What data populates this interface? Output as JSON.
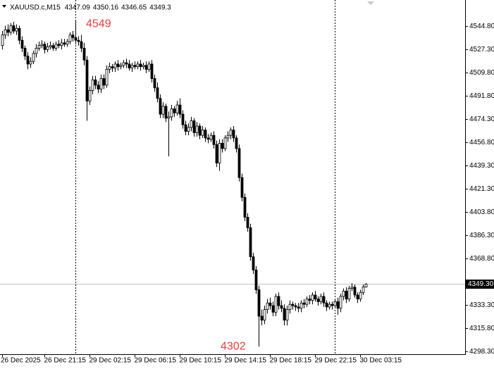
{
  "chart_data": {
    "type": "candlestick",
    "symbol": "XAUUSD.c,M15",
    "categories": [
      "26 Dec 2025",
      null,
      null,
      null,
      null,
      null,
      null,
      null,
      null,
      null,
      null,
      null,
      null,
      null,
      null,
      "26 Dec 21:15",
      null,
      null,
      null,
      null,
      null,
      null,
      null,
      null,
      null,
      null,
      null,
      null,
      null,
      null,
      null,
      "29 Dec 02:15",
      null,
      null,
      null,
      null,
      null,
      null,
      null,
      null,
      null,
      null,
      null,
      null,
      null,
      null,
      null,
      "29 Dec 06:15",
      null,
      null,
      null,
      null,
      null,
      null,
      null,
      null,
      null,
      null,
      null,
      null,
      null,
      null,
      null,
      "29 Dec 10:15",
      null,
      null,
      null,
      null,
      null,
      null,
      null,
      null,
      null,
      null,
      null,
      null,
      null,
      null,
      null,
      "29 Dec 14:15",
      null,
      null,
      null,
      null,
      null,
      null,
      null,
      null,
      null,
      null,
      null,
      null,
      null,
      null,
      null,
      "29 Dec 18:15",
      null,
      null,
      null,
      null,
      null,
      null,
      null,
      null,
      null,
      null,
      null,
      null,
      null,
      null,
      null,
      "29 Dec 22:15",
      null,
      null,
      null,
      null,
      null,
      null,
      null,
      null,
      null,
      null,
      null,
      null,
      null,
      null,
      null,
      "30 Dec 03:15",
      null,
      null
    ],
    "open": [
      4530,
      4538,
      4542,
      4540,
      4545,
      4541,
      4543,
      4534,
      4528,
      4522,
      4516,
      4518,
      4524,
      4528,
      4530,
      4531,
      4527,
      4529,
      4530,
      4528,
      4531,
      4530,
      4532,
      4531,
      4533,
      4538,
      4536,
      4534,
      4533,
      4528,
      4519,
      4488,
      4496,
      4504,
      4500,
      4497,
      4505,
      4500,
      4512,
      4514,
      4513,
      4516,
      4514,
      4515,
      4517,
      4516,
      4513,
      4515,
      4514,
      4516,
      4514,
      4515,
      4512,
      4516,
      4505,
      4498,
      4490,
      4478,
      4484,
      4475,
      4476,
      4482,
      4479,
      4485,
      4478,
      4470,
      4465,
      4468,
      4473,
      4464,
      4469,
      4462,
      4466,
      4460,
      4459,
      4462,
      4455,
      4441,
      4456,
      4452,
      4460,
      4462,
      4466,
      4460,
      4452,
      4430,
      4415,
      4400,
      4392,
      4370,
      4360,
      4345,
      4325,
      4322,
      4330,
      4335,
      4333,
      4328,
      4340,
      4333,
      4331,
      4322,
      4330,
      4334,
      4333,
      4332,
      4331,
      4335,
      4334,
      4338,
      4337,
      4341,
      4338,
      4336,
      4340,
      4335,
      4332,
      4334,
      4333,
      4336,
      4331,
      4340,
      4344,
      4338,
      4346,
      4347,
      4341,
      4338,
      4343,
      4347.09
    ],
    "high": [
      4541,
      4545,
      4546,
      4547,
      4548,
      4546,
      4545,
      4537,
      4530,
      4525,
      4521,
      4526,
      4531,
      4533,
      4534,
      4533,
      4532,
      4533,
      4532,
      4533,
      4534,
      4535,
      4535,
      4535,
      4540,
      4541,
      4549,
      4537,
      4538,
      4532,
      4522,
      4499,
      4507,
      4507,
      4503,
      4508,
      4508,
      4515,
      4517,
      4516,
      4518,
      4519,
      4517,
      4519,
      4520,
      4519,
      4517,
      4518,
      4518,
      4519,
      4517,
      4518,
      4518,
      4519,
      4508,
      4502,
      4493,
      4487,
      4486,
      4480,
      4485,
      4484,
      4488,
      4490,
      4481,
      4473,
      4471,
      4476,
      4475,
      4472,
      4471,
      4469,
      4468,
      4463,
      4464,
      4465,
      4458,
      4459,
      4459,
      4462,
      4465,
      4468,
      4469,
      4462,
      4455,
      4433,
      4418,
      4403,
      4395,
      4373,
      4363,
      4348,
      4330,
      4333,
      4338,
      4339,
      4336,
      4342,
      4343,
      4337,
      4334,
      4333,
      4337,
      4336,
      4335,
      4335,
      4337,
      4338,
      4340,
      4341,
      4343,
      4344,
      4340,
      4342,
      4343,
      4337,
      4336,
      4336,
      4338,
      4339,
      4342,
      4346,
      4347,
      4348,
      4350,
      4349,
      4343,
      4345,
      4349,
      4350.16
    ],
    "low": [
      4527,
      4535,
      4537,
      4538,
      4539,
      4538,
      4531,
      4525,
      4519,
      4512,
      4513,
      4516,
      4521,
      4526,
      4528,
      4524,
      4525,
      4527,
      4526,
      4526,
      4528,
      4527,
      4529,
      4529,
      4531,
      4533,
      4531,
      4530,
      4525,
      4515,
      4473,
      4485,
      4493,
      4497,
      4494,
      4494,
      4497,
      4498,
      4509,
      4510,
      4510,
      4511,
      4512,
      4513,
      4513,
      4511,
      4510,
      4512,
      4512,
      4511,
      4512,
      4509,
      4510,
      4502,
      4495,
      4487,
      4475,
      4475,
      4472,
      4446,
      4473,
      4476,
      4477,
      4475,
      4467,
      4462,
      4462,
      4465,
      4461,
      4461,
      4459,
      4460,
      4457,
      4456,
      4457,
      4452,
      4438,
      4435,
      4449,
      4450,
      4457,
      4459,
      4457,
      4449,
      4427,
      4412,
      4397,
      4389,
      4367,
      4357,
      4342,
      4302,
      4318,
      4319,
      4327,
      4330,
      4325,
      4325,
      4330,
      4328,
      4318,
      4318,
      4327,
      4330,
      4329,
      4328,
      4328,
      4331,
      4332,
      4334,
      4334,
      4336,
      4333,
      4334,
      4332,
      4329,
      4330,
      4330,
      4331,
      4326,
      4328,
      4337,
      4335,
      4336,
      4344,
      4339,
      4335,
      4336,
      4341,
      4346.65
    ],
    "close": [
      4538,
      4542,
      4540,
      4545,
      4541,
      4543,
      4534,
      4528,
      4522,
      4516,
      4518,
      4524,
      4528,
      4530,
      4531,
      4527,
      4529,
      4530,
      4528,
      4531,
      4530,
      4532,
      4531,
      4533,
      4538,
      4536,
      4534,
      4533,
      4528,
      4519,
      4488,
      4496,
      4504,
      4500,
      4497,
      4505,
      4500,
      4512,
      4514,
      4513,
      4516,
      4514,
      4515,
      4517,
      4516,
      4513,
      4515,
      4514,
      4516,
      4514,
      4515,
      4512,
      4516,
      4505,
      4498,
      4490,
      4478,
      4484,
      4475,
      4476,
      4482,
      4479,
      4485,
      4478,
      4470,
      4465,
      4468,
      4473,
      4464,
      4469,
      4462,
      4466,
      4460,
      4459,
      4462,
      4455,
      4441,
      4456,
      4452,
      4460,
      4462,
      4466,
      4460,
      4452,
      4430,
      4415,
      4400,
      4392,
      4370,
      4360,
      4345,
      4325,
      4322,
      4330,
      4335,
      4333,
      4328,
      4340,
      4333,
      4331,
      4322,
      4330,
      4334,
      4333,
      4332,
      4331,
      4335,
      4334,
      4338,
      4337,
      4341,
      4338,
      4336,
      4340,
      4335,
      4332,
      4334,
      4333,
      4336,
      4331,
      4340,
      4344,
      4338,
      4346,
      4347,
      4341,
      4338,
      4343,
      4347.09,
      4349.3
    ],
    "close_label": "4349.30",
    "annotations": [
      4549,
      4302
    ],
    "annotation_color": "#f03c3c",
    "ylim": [
      4296.2,
      4564.5
    ],
    "yticks": [
      {
        "value": 4544.8,
        "label": "4544.80"
      },
      {
        "value": 4527.3,
        "label": "4527.30"
      },
      {
        "value": 4509.8,
        "label": "4509.80"
      },
      {
        "value": 4491.8,
        "label": "4491.80"
      },
      {
        "value": 4474.3,
        "label": "4474.30"
      },
      {
        "value": 4456.8,
        "label": "4456.80"
      },
      {
        "value": 4439.3,
        "label": "4439.30"
      },
      {
        "value": 4421.3,
        "label": "4421.30"
      },
      {
        "value": 4403.8,
        "label": "4403.80"
      },
      {
        "value": 4386.3,
        "label": "4386.30"
      },
      {
        "value": 4368.8,
        "label": "4368.80"
      },
      {
        "value": 4333.3,
        "label": "4333.30"
      },
      {
        "value": 4315.8,
        "label": "4315.80"
      },
      {
        "value": 4298.3,
        "label": "4298.30"
      }
    ],
    "bull_color": "#ffffff",
    "bear_color": "#000000"
  }
}
